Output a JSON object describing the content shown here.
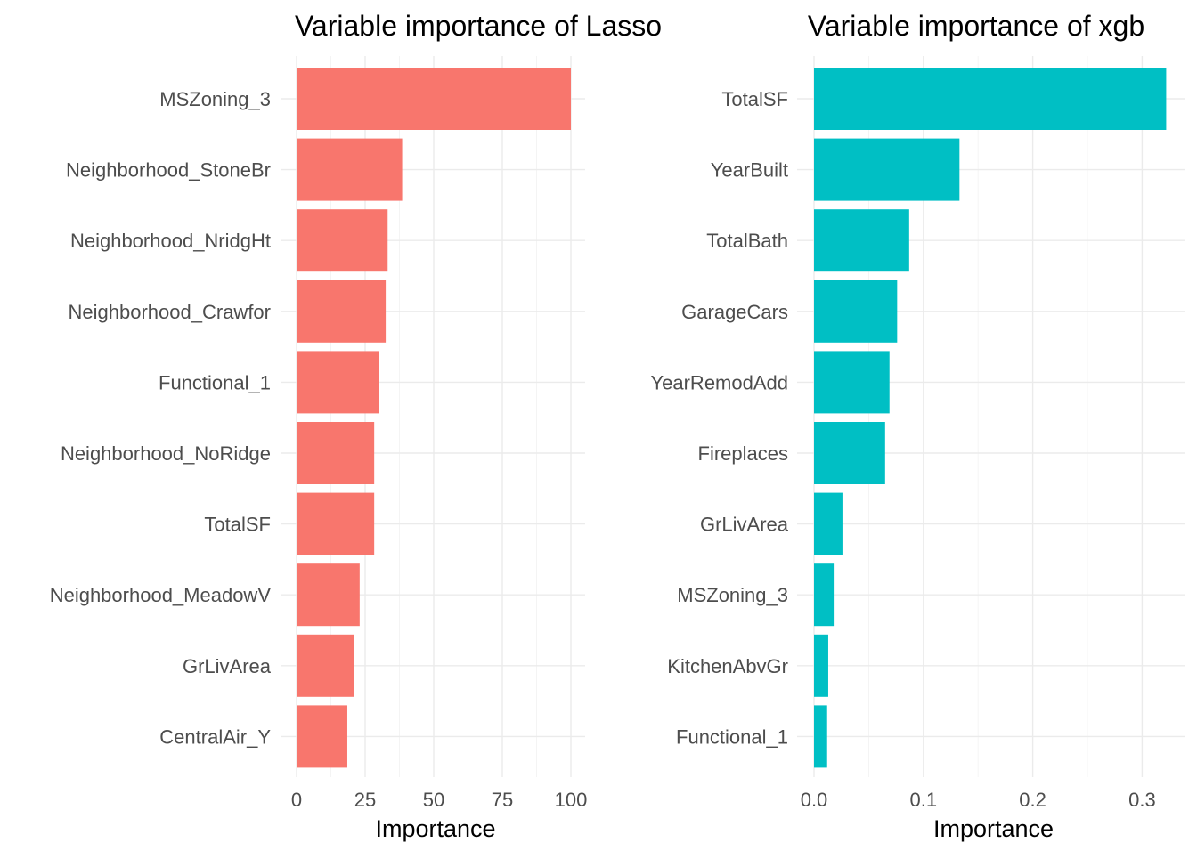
{
  "chart_data": [
    {
      "type": "bar",
      "orientation": "horizontal",
      "title": "Variable importance of Lasso",
      "xlabel": "Importance",
      "ylabel": "",
      "xlim": [
        0,
        105
      ],
      "xticks": [
        "0",
        "25",
        "50",
        "75",
        "100"
      ],
      "xtick_values": [
        0,
        25,
        50,
        75,
        100
      ],
      "grid": true,
      "color": "#F8766D",
      "categories": [
        "MSZoning_3",
        "Neighborhood_StoneBr",
        "Neighborhood_NridgHt",
        "Neighborhood_Crawfor",
        "Functional_1",
        "Neighborhood_NoRidge",
        "TotalSF",
        "Neighborhood_MeadowV",
        "GrLivArea",
        "CentralAir_Y"
      ],
      "values": [
        100,
        38.5,
        33.2,
        32.5,
        30.0,
        28.3,
        28.3,
        23.0,
        20.8,
        18.5
      ]
    },
    {
      "type": "bar",
      "orientation": "horizontal",
      "title": "Variable importance of xgb",
      "xlabel": "Importance",
      "ylabel": "",
      "xlim": [
        0,
        0.338
      ],
      "xticks": [
        "0.0",
        "0.1",
        "0.2",
        "0.3"
      ],
      "xtick_values": [
        0,
        0.1,
        0.2,
        0.3
      ],
      "grid": true,
      "color": "#00BFC4",
      "categories": [
        "TotalSF",
        "YearBuilt",
        "TotalBath",
        "GarageCars",
        "YearRemodAdd",
        "Fireplaces",
        "GrLivArea",
        "MSZoning_3",
        "KitchenAbvGr",
        "Functional_1"
      ],
      "values": [
        0.322,
        0.133,
        0.087,
        0.076,
        0.069,
        0.065,
        0.026,
        0.018,
        0.013,
        0.012
      ]
    }
  ]
}
